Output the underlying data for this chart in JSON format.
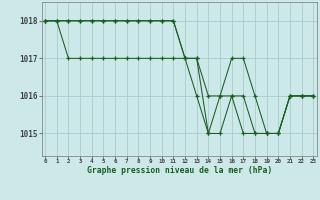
{
  "background_color": "#cce8e8",
  "grid_color": "#aacccc",
  "line_color": "#1a5e20",
  "xlabel": "Graphe pression niveau de la mer (hPa)",
  "ylim": [
    1014.4,
    1018.5
  ],
  "xlim": [
    -0.3,
    23.3
  ],
  "yticks": [
    1015,
    1016,
    1017,
    1018
  ],
  "xticks": [
    0,
    1,
    2,
    3,
    4,
    5,
    6,
    7,
    8,
    9,
    10,
    11,
    12,
    13,
    14,
    15,
    16,
    17,
    18,
    19,
    20,
    21,
    22,
    23
  ],
  "series1": [
    1018,
    1018,
    1018,
    1018,
    1018,
    1018,
    1018,
    1018,
    1018,
    1018,
    1018,
    1018,
    1017,
    1017,
    1015,
    1016,
    1017,
    1017,
    1016,
    1015,
    1015,
    1016,
    1016,
    1016
  ],
  "series2": [
    1018,
    1018,
    1018,
    1018,
    1018,
    1018,
    1018,
    1018,
    1018,
    1018,
    1018,
    1018,
    1017,
    1017,
    1016,
    1016,
    1016,
    1016,
    1015,
    1015,
    1015,
    1016,
    1016,
    1016
  ],
  "series3": [
    1018,
    1018,
    1017,
    1017,
    1017,
    1017,
    1017,
    1017,
    1017,
    1017,
    1017,
    1017,
    1017,
    1016,
    1015,
    1015,
    1016,
    1015,
    1015,
    1015,
    1015,
    1016,
    1016,
    1016
  ]
}
